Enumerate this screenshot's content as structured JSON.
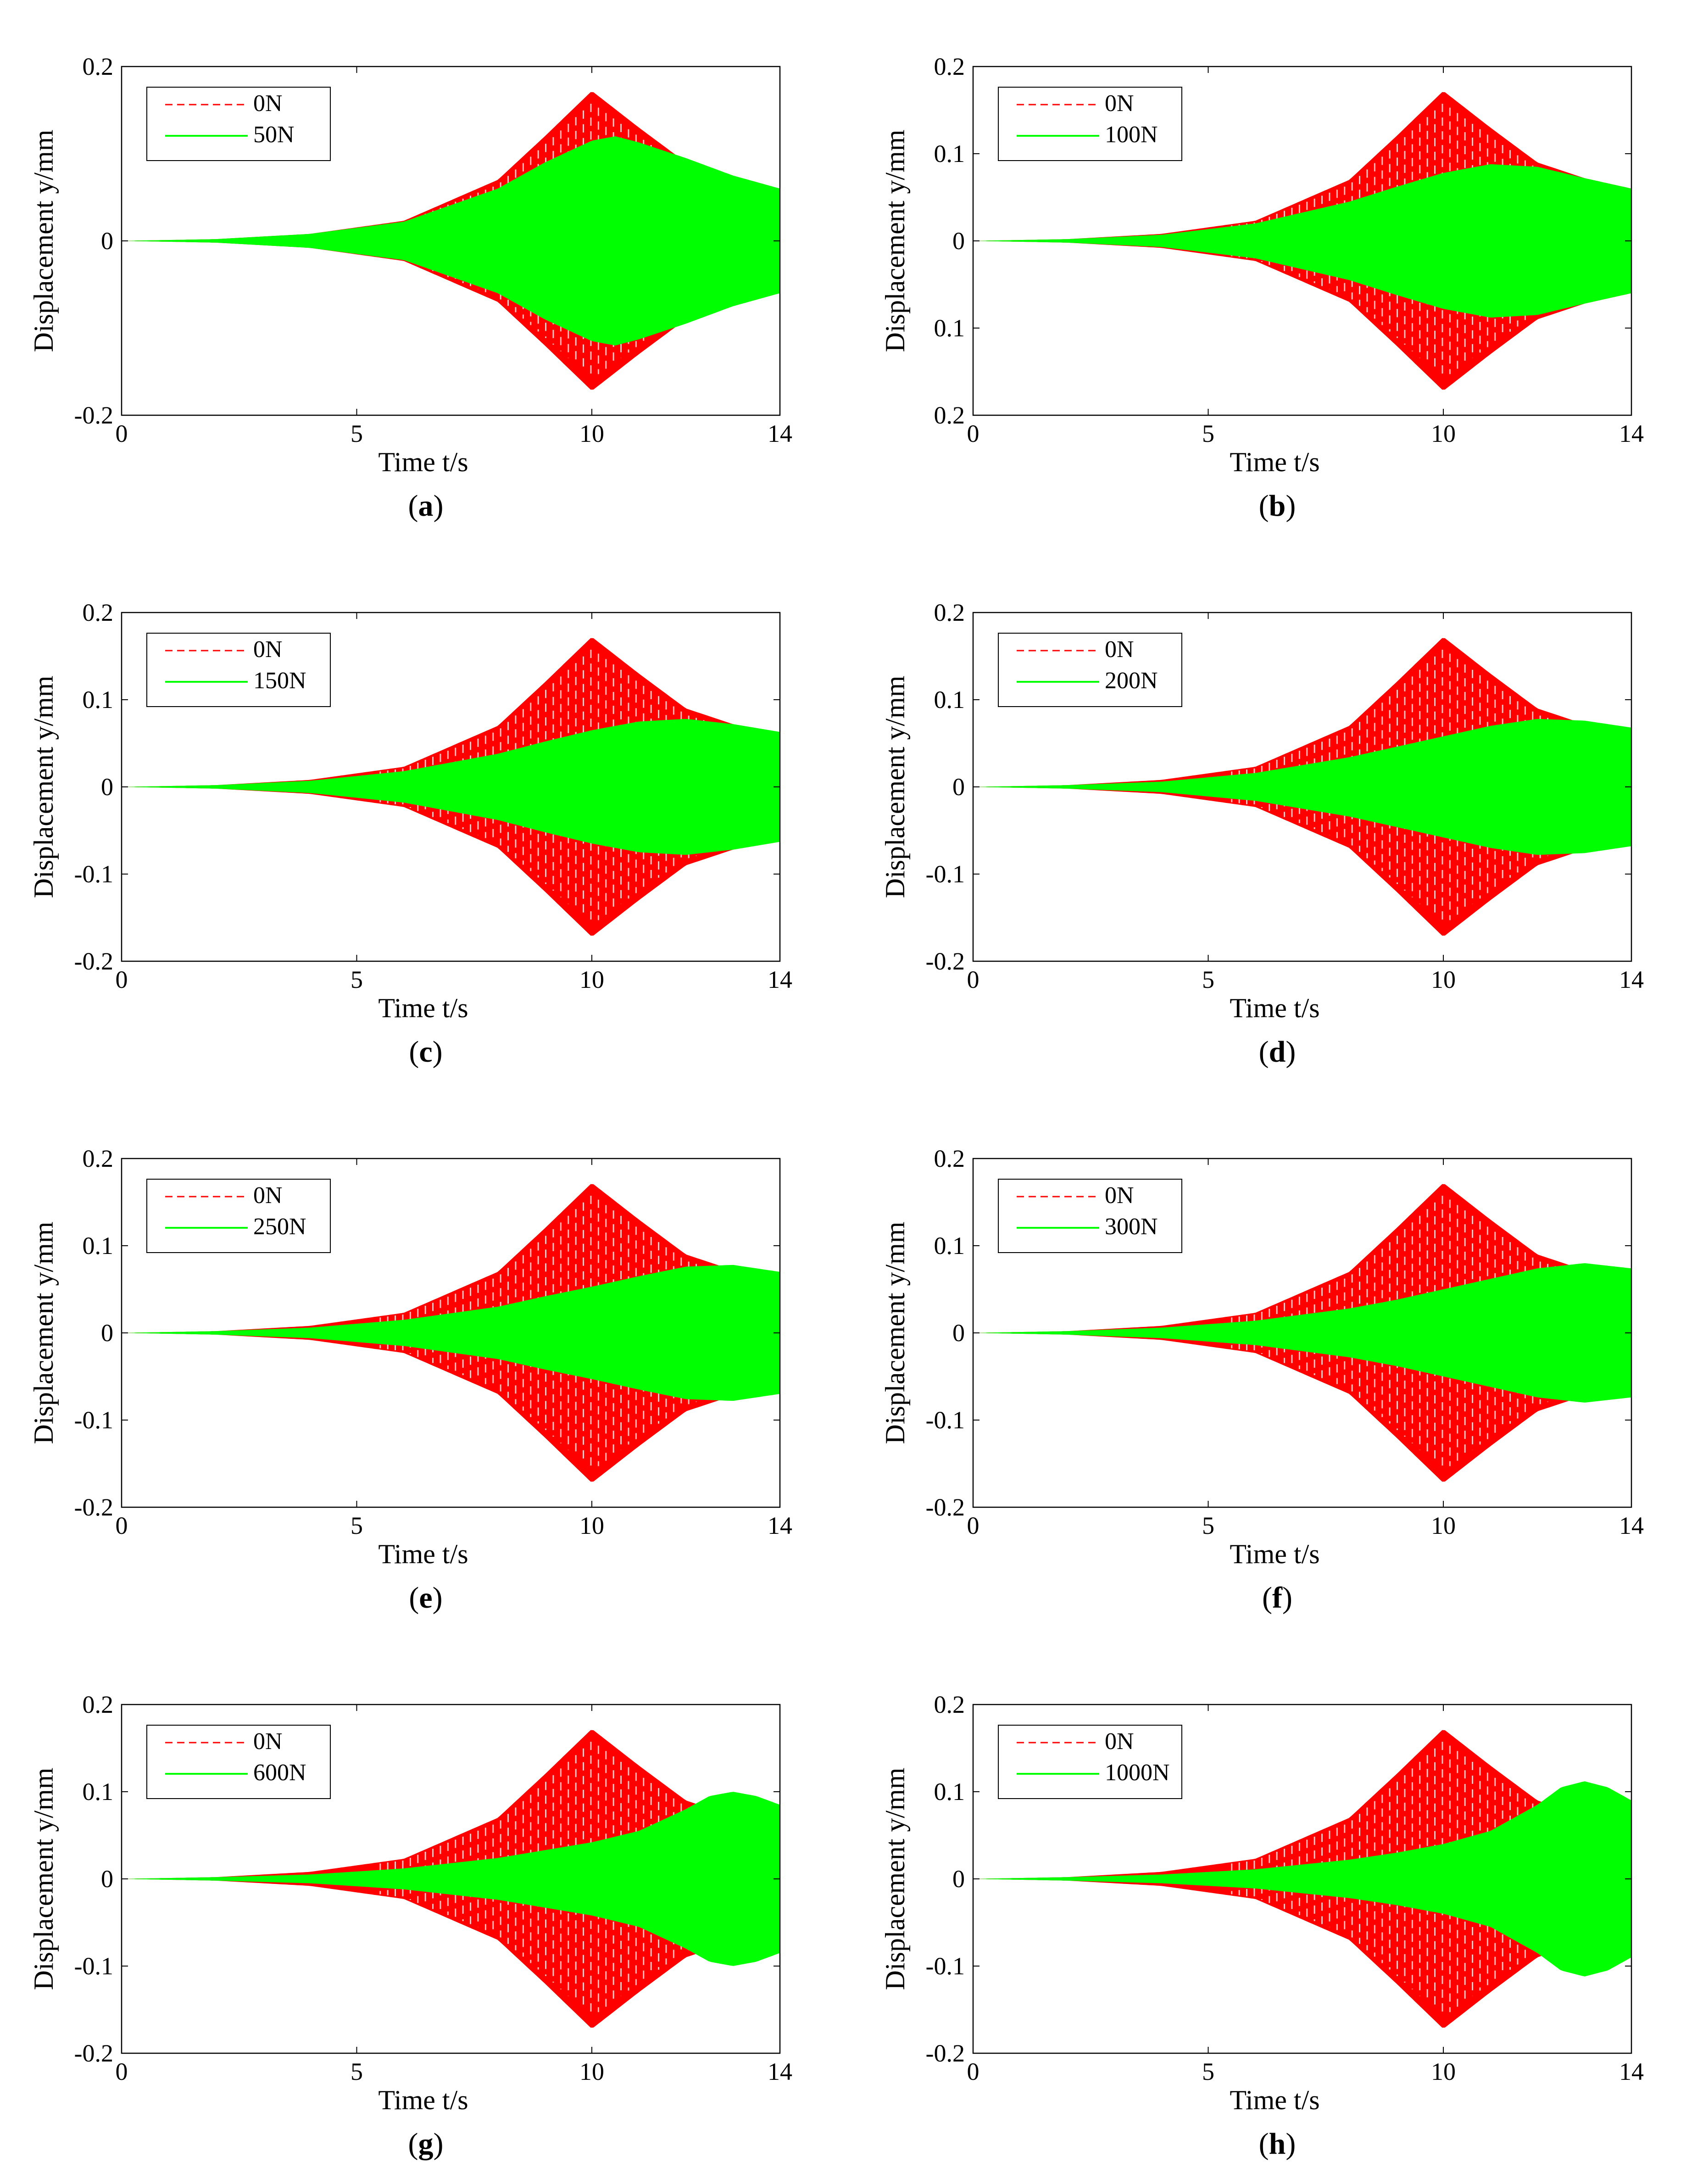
{
  "colors": {
    "ref": "#ff0000",
    "cmp": "#00ff00",
    "axis": "#000000"
  },
  "chart_data": [
    {
      "panel": "a",
      "type": "area",
      "title": "",
      "xlabel": "Time t/s",
      "ylabel": "Displacement y/mm",
      "xlim": [
        0,
        14
      ],
      "ylim": [
        -0.2,
        0.2
      ],
      "xticks": [
        "0",
        "5",
        "10",
        "14"
      ],
      "yticks": [
        "0.2",
        "0",
        "-0.2"
      ],
      "series": [
        {
          "name": "0N",
          "style": "dashed",
          "x": [
            0,
            2,
            4,
            6,
            8,
            9,
            10,
            11,
            12,
            13,
            14
          ],
          "y": [
            0,
            0.002,
            0.008,
            0.023,
            0.07,
            0.12,
            0.172,
            0.13,
            0.09,
            0.072,
            0.06
          ]
        },
        {
          "name": "50N",
          "style": "solid",
          "x": [
            0,
            2,
            4,
            6,
            8,
            9,
            10,
            10.5,
            11,
            12,
            13,
            14
          ],
          "y": [
            0,
            0.002,
            0.008,
            0.022,
            0.06,
            0.09,
            0.115,
            0.12,
            0.113,
            0.095,
            0.075,
            0.06
          ]
        }
      ]
    },
    {
      "panel": "b",
      "type": "area",
      "title": "",
      "xlabel": "Time t/s",
      "ylabel": "Displacement y/mm",
      "xlim": [
        0,
        14
      ],
      "ylim": [
        -0.2,
        0.2
      ],
      "xticks": [
        "0",
        "5",
        "10",
        "14"
      ],
      "yticks": [
        "0.2",
        "0.1",
        "0",
        "0.1",
        "0.2"
      ],
      "series": [
        {
          "name": "0N",
          "style": "dashed",
          "x": [
            0,
            2,
            4,
            6,
            8,
            9,
            10,
            11,
            12,
            13,
            14
          ],
          "y": [
            0,
            0.002,
            0.008,
            0.023,
            0.07,
            0.12,
            0.172,
            0.13,
            0.09,
            0.072,
            0.06
          ]
        },
        {
          "name": "100N",
          "style": "solid",
          "x": [
            0,
            2,
            4,
            6,
            8,
            9,
            10,
            11,
            12,
            13,
            14
          ],
          "y": [
            0,
            0.002,
            0.007,
            0.02,
            0.045,
            0.062,
            0.078,
            0.088,
            0.085,
            0.072,
            0.06
          ]
        }
      ]
    },
    {
      "panel": "c",
      "type": "area",
      "title": "",
      "xlabel": "Time t/s",
      "ylabel": "Displacement y/mm",
      "xlim": [
        0,
        14
      ],
      "ylim": [
        -0.2,
        0.2
      ],
      "xticks": [
        "0",
        "5",
        "10",
        "14"
      ],
      "yticks": [
        "0.2",
        "0.1",
        "0",
        "-0.1",
        "-0.2"
      ],
      "series": [
        {
          "name": "0N",
          "style": "dashed",
          "x": [
            0,
            2,
            4,
            6,
            8,
            9,
            10,
            11,
            12,
            13,
            14
          ],
          "y": [
            0,
            0.002,
            0.008,
            0.023,
            0.07,
            0.12,
            0.172,
            0.13,
            0.09,
            0.072,
            0.06
          ]
        },
        {
          "name": "150N",
          "style": "solid",
          "x": [
            0,
            2,
            4,
            6,
            8,
            9,
            10,
            11,
            12,
            13,
            14
          ],
          "y": [
            0,
            0.002,
            0.007,
            0.018,
            0.038,
            0.052,
            0.065,
            0.075,
            0.078,
            0.072,
            0.063
          ]
        }
      ]
    },
    {
      "panel": "d",
      "type": "area",
      "title": "",
      "xlabel": "Time t/s",
      "ylabel": "Displacement y/mm",
      "xlim": [
        0,
        14
      ],
      "ylim": [
        -0.2,
        0.2
      ],
      "xticks": [
        "0",
        "5",
        "10",
        "14"
      ],
      "yticks": [
        "0.2",
        "0.1",
        "0",
        "-0.1",
        "-0.2"
      ],
      "series": [
        {
          "name": "0N",
          "style": "dashed",
          "x": [
            0,
            2,
            4,
            6,
            8,
            9,
            10,
            11,
            12,
            13,
            14
          ],
          "y": [
            0,
            0.002,
            0.008,
            0.023,
            0.07,
            0.12,
            0.172,
            0.13,
            0.09,
            0.072,
            0.06
          ]
        },
        {
          "name": "200N",
          "style": "solid",
          "x": [
            0,
            2,
            4,
            6,
            8,
            9,
            10,
            11,
            12,
            13,
            14
          ],
          "y": [
            0,
            0.002,
            0.006,
            0.016,
            0.034,
            0.046,
            0.058,
            0.07,
            0.078,
            0.076,
            0.068
          ]
        }
      ]
    },
    {
      "panel": "e",
      "type": "area",
      "title": "",
      "xlabel": "Time t/s",
      "ylabel": "Displacement y/mm",
      "xlim": [
        0,
        14
      ],
      "ylim": [
        -0.2,
        0.2
      ],
      "xticks": [
        "0",
        "5",
        "10",
        "14"
      ],
      "yticks": [
        "0.2",
        "0.1",
        "0",
        "-0.1",
        "-0.2"
      ],
      "series": [
        {
          "name": "0N",
          "style": "dashed",
          "x": [
            0,
            2,
            4,
            6,
            8,
            9,
            10,
            11,
            12,
            13,
            14
          ],
          "y": [
            0,
            0.002,
            0.008,
            0.023,
            0.07,
            0.12,
            0.172,
            0.13,
            0.09,
            0.072,
            0.06
          ]
        },
        {
          "name": "250N",
          "style": "solid",
          "x": [
            0,
            2,
            4,
            6,
            8,
            9,
            10,
            11,
            12,
            13,
            14
          ],
          "y": [
            0,
            0.002,
            0.006,
            0.015,
            0.03,
            0.042,
            0.053,
            0.065,
            0.076,
            0.078,
            0.07
          ]
        }
      ]
    },
    {
      "panel": "f",
      "type": "area",
      "title": "",
      "xlabel": "Time t/s",
      "ylabel": "Displacement y/mm",
      "xlim": [
        0,
        14
      ],
      "ylim": [
        -0.2,
        0.2
      ],
      "xticks": [
        "0",
        "5",
        "10",
        "14"
      ],
      "yticks": [
        "0.2",
        "0.1",
        "0",
        "-0.1",
        "-0.2"
      ],
      "series": [
        {
          "name": "0N",
          "style": "dashed",
          "x": [
            0,
            2,
            4,
            6,
            8,
            9,
            10,
            11,
            12,
            13,
            14
          ],
          "y": [
            0,
            0.002,
            0.008,
            0.023,
            0.07,
            0.12,
            0.172,
            0.13,
            0.09,
            0.072,
            0.06
          ]
        },
        {
          "name": "300N",
          "style": "solid",
          "x": [
            0,
            2,
            4,
            6,
            8,
            9,
            10,
            11,
            12,
            13,
            14
          ],
          "y": [
            0,
            0.002,
            0.006,
            0.014,
            0.028,
            0.038,
            0.05,
            0.062,
            0.074,
            0.08,
            0.074
          ]
        }
      ]
    },
    {
      "panel": "g",
      "type": "area",
      "title": "",
      "xlabel": "Time t/s",
      "ylabel": "Displacement y/mm",
      "xlim": [
        0,
        14
      ],
      "ylim": [
        -0.2,
        0.2
      ],
      "xticks": [
        "0",
        "5",
        "10",
        "14"
      ],
      "yticks": [
        "0.2",
        "0.1",
        "0",
        "-0.1",
        "-0.2"
      ],
      "series": [
        {
          "name": "0N",
          "style": "dashed",
          "x": [
            0,
            2,
            4,
            6,
            8,
            9,
            10,
            11,
            12,
            13,
            14
          ],
          "y": [
            0,
            0.002,
            0.008,
            0.023,
            0.07,
            0.12,
            0.172,
            0.13,
            0.09,
            0.072,
            0.06
          ]
        },
        {
          "name": "600N",
          "style": "solid",
          "x": [
            0,
            2,
            4,
            6,
            8,
            9,
            10,
            11,
            12,
            12.5,
            13,
            13.5,
            14
          ],
          "y": [
            0,
            0.002,
            0.005,
            0.012,
            0.024,
            0.033,
            0.042,
            0.055,
            0.08,
            0.095,
            0.1,
            0.095,
            0.085
          ]
        }
      ]
    },
    {
      "panel": "h",
      "type": "area",
      "title": "",
      "xlabel": "Time t/s",
      "ylabel": "Displacement y/mm",
      "xlim": [
        0,
        14
      ],
      "ylim": [
        -0.2,
        0.2
      ],
      "xticks": [
        "0",
        "5",
        "10",
        "14"
      ],
      "yticks": [
        "0.2",
        "0.1",
        "0",
        "-0.1",
        "-0.2"
      ],
      "series": [
        {
          "name": "0N",
          "style": "dashed",
          "x": [
            0,
            2,
            4,
            6,
            8,
            9,
            10,
            11,
            12,
            13,
            14
          ],
          "y": [
            0,
            0.002,
            0.008,
            0.023,
            0.07,
            0.12,
            0.172,
            0.13,
            0.09,
            0.072,
            0.06
          ]
        },
        {
          "name": "1000N",
          "style": "solid",
          "x": [
            0,
            2,
            4,
            6,
            8,
            9,
            10,
            11,
            12,
            12.5,
            13,
            13.5,
            14
          ],
          "y": [
            0,
            0.002,
            0.005,
            0.011,
            0.022,
            0.03,
            0.04,
            0.055,
            0.085,
            0.105,
            0.112,
            0.105,
            0.09
          ]
        }
      ]
    }
  ]
}
